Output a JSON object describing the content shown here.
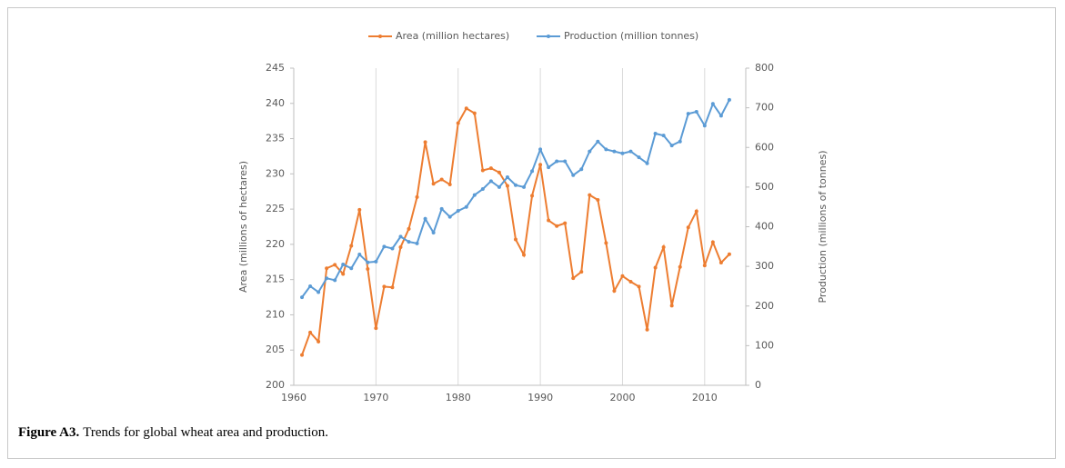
{
  "chart_data": {
    "type": "line",
    "x": [
      1961,
      1962,
      1963,
      1964,
      1965,
      1966,
      1967,
      1968,
      1969,
      1970,
      1971,
      1972,
      1973,
      1974,
      1975,
      1976,
      1977,
      1978,
      1979,
      1980,
      1981,
      1982,
      1983,
      1984,
      1985,
      1986,
      1987,
      1988,
      1989,
      1990,
      1991,
      1992,
      1993,
      1994,
      1995,
      1996,
      1997,
      1998,
      1999,
      2000,
      2001,
      2002,
      2003,
      2004,
      2005,
      2006,
      2007,
      2008,
      2009,
      2010,
      2011,
      2012,
      2013
    ],
    "series": [
      {
        "name": "Area (million hectares)",
        "color": "#ed7d31",
        "axis": "y",
        "values": [
          204.3,
          207.5,
          206.2,
          216.6,
          217.1,
          215.8,
          219.8,
          224.9,
          216.5,
          208.1,
          214.0,
          213.9,
          219.6,
          222.2,
          226.7,
          234.5,
          228.6,
          229.2,
          228.5,
          237.2,
          239.3,
          238.6,
          230.5,
          230.8,
          230.2,
          228.3,
          220.7,
          218.5,
          226.9,
          231.3,
          223.4,
          222.6,
          223.0,
          215.2,
          216.1,
          227.0,
          226.3,
          220.2,
          213.4,
          215.5,
          214.7,
          214.0,
          207.9,
          216.7,
          219.6,
          211.3,
          216.8,
          222.4,
          224.7,
          217.0,
          220.3,
          217.4,
          218.6
        ]
      },
      {
        "name": "Production (million tonnes)",
        "color": "#5b9bd5",
        "axis": "y2",
        "values": [
          222,
          250,
          235,
          270,
          265,
          305,
          295,
          330,
          310,
          312,
          350,
          345,
          375,
          362,
          358,
          420,
          385,
          445,
          425,
          440,
          450,
          480,
          495,
          515,
          500,
          525,
          505,
          500,
          540,
          595,
          550,
          565,
          565,
          530,
          545,
          590,
          615,
          595,
          590,
          585,
          590,
          575,
          560,
          635,
          630,
          605,
          615,
          685,
          690,
          655,
          710,
          680,
          720
        ]
      }
    ],
    "xlim": [
      1960,
      2015
    ],
    "xticks": [
      1960,
      1970,
      1980,
      1990,
      2000,
      2010
    ],
    "ylim": [
      200,
      245
    ],
    "yticks": [
      200,
      205,
      210,
      215,
      220,
      225,
      230,
      235,
      240,
      245
    ],
    "y2lim": [
      0,
      800
    ],
    "y2ticks": [
      0,
      100,
      200,
      300,
      400,
      500,
      600,
      700,
      800
    ],
    "ylabel": "Area (millions of hectares)",
    "y2label": "Production (millions of tonnes)",
    "grid": "x",
    "legend": "top"
  },
  "caption": {
    "label": "Figure A3.",
    "text": "Trends for global wheat area and production."
  }
}
